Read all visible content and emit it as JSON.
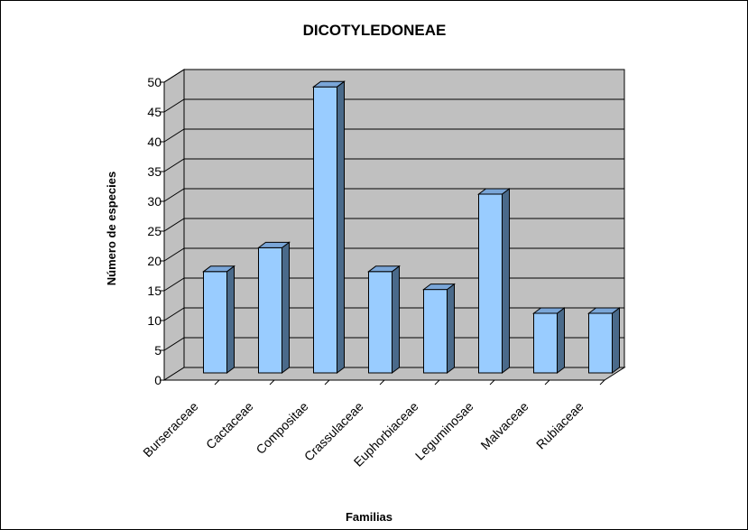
{
  "chart_data": {
    "type": "bar",
    "title": "DICOTYLEDONEAE",
    "xlabel": "Familias",
    "ylabel": "Número de especies",
    "categories": [
      "Burseraceae",
      "Cactaceae",
      "Compositae",
      "Crassulaceae",
      "Euphorbiaceae",
      "Leguminosae",
      "Malvaceae",
      "Rubiaceae"
    ],
    "values": [
      17,
      21,
      48,
      17,
      14,
      30,
      10,
      10
    ],
    "ylim": [
      0,
      50
    ],
    "yticks": [
      0,
      5,
      10,
      15,
      20,
      25,
      30,
      35,
      40,
      45,
      50
    ],
    "grid": true,
    "legend": "none",
    "colors": {
      "bar_front": "#99ccff",
      "bar_side": "#4a6a8a",
      "bar_top": "#7aa6d8",
      "wall": "#c0c0c0",
      "floor": "#c0c0c0",
      "grid": "#000000"
    }
  }
}
